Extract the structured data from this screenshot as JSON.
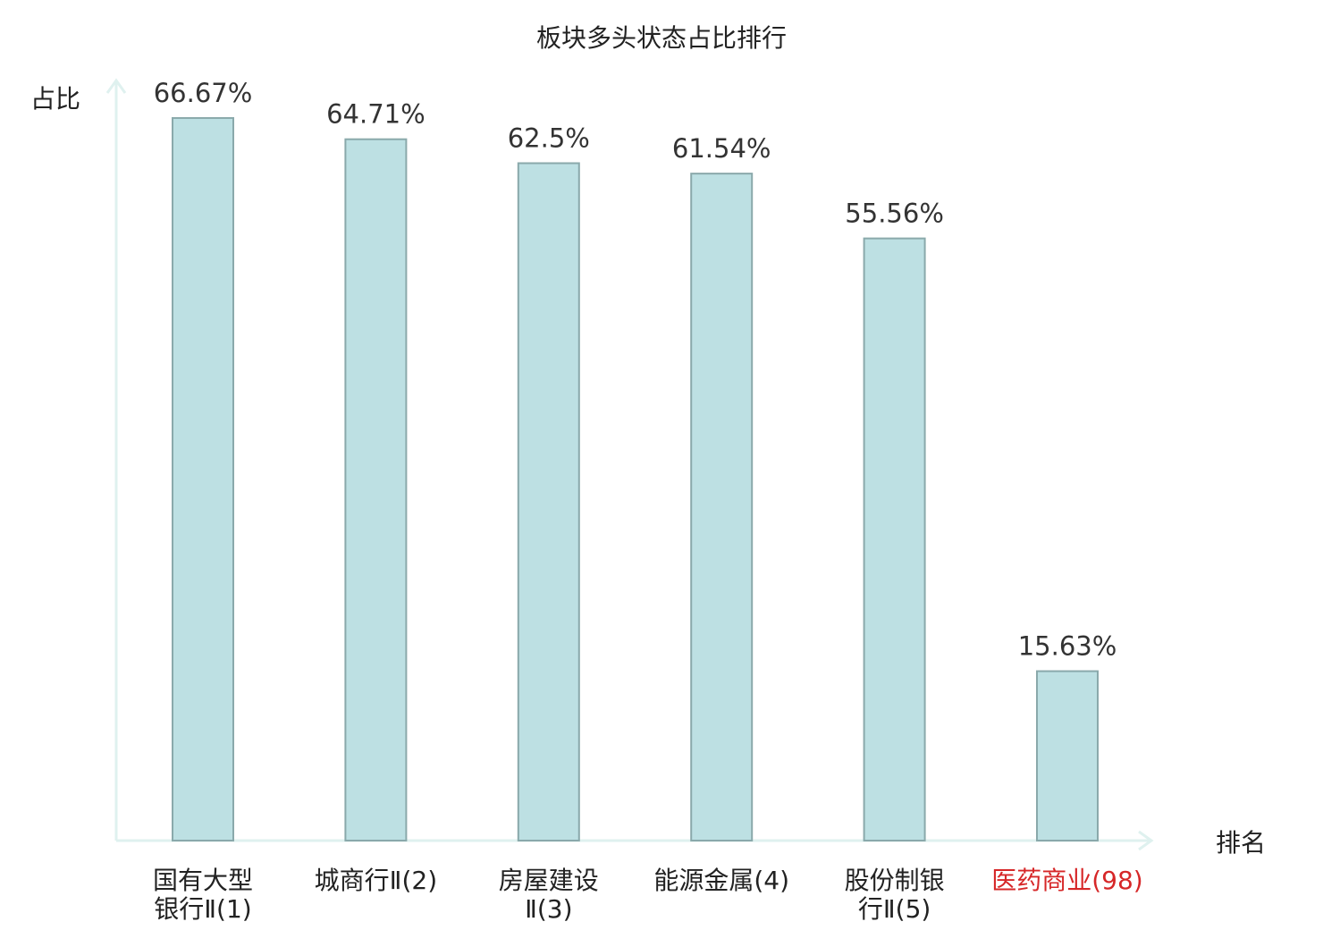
{
  "chart_data": {
    "type": "bar",
    "title": "板块多头状态占比排行",
    "ylabel": "占比",
    "xlabel": "排名",
    "ylim": [
      0,
      70
    ],
    "categories": [
      [
        "国有大型",
        "银行Ⅱ(1)"
      ],
      [
        "城商行Ⅱ(2)"
      ],
      [
        "房屋建设",
        "Ⅱ(3)"
      ],
      [
        "能源金属(4)"
      ],
      [
        "股份制银",
        "行Ⅱ(5)"
      ],
      [
        "医药商业(98)"
      ]
    ],
    "values": [
      66.67,
      64.71,
      62.5,
      61.54,
      55.56,
      15.63
    ],
    "value_labels": [
      "66.67%",
      "64.71%",
      "62.5%",
      "61.54%",
      "55.56%",
      "15.63%"
    ],
    "highlight_index": 5,
    "colors": {
      "bar_fill": "#bde0e3",
      "bar_stroke": "#8aa9ab",
      "axis": "#dff1ef",
      "highlight_text": "#d62728"
    },
    "grid": false,
    "legend": "none"
  }
}
